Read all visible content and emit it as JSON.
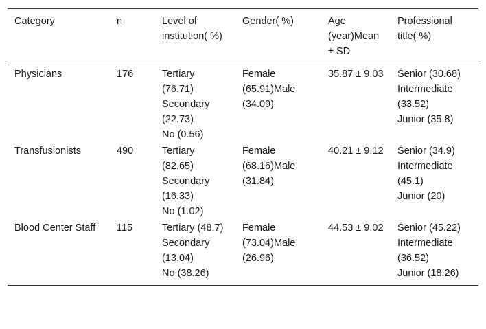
{
  "table": {
    "headers": [
      "Category",
      "n",
      "Level of institution( %)",
      "Gender( %)",
      "Age (year)Mean ± SD",
      "Professional title( %)"
    ],
    "rows": [
      {
        "category": "Physicians",
        "n": "176",
        "level": [
          "Tertiary (76.71)",
          "Secondary (22.73)",
          "No (0.56)"
        ],
        "gender": "Female (65.91)Male (34.09)",
        "age": "35.87 ± 9.03",
        "title": [
          "Senior (30.68)",
          "Intermediate (33.52)",
          "Junior (35.8)"
        ]
      },
      {
        "category": "Transfusionists",
        "n": "490",
        "level": [
          "Tertiary (82.65)",
          "Secondary (16.33)",
          "No (1.02)"
        ],
        "gender": "Female (68.16)Male (31.84)",
        "age": "40.21 ± 9.12",
        "title": [
          "Senior (34.9)",
          "Intermediate (45.1)",
          "Junior (20)"
        ]
      },
      {
        "category": "Blood Center Staff",
        "n": "115",
        "level": [
          "Tertiary (48.7)",
          "Secondary (13.04)",
          "No (38.26)"
        ],
        "gender": "Female (73.04)Male (26.96)",
        "age": "44.53 ± 9.02",
        "title": [
          "Senior (45.22)",
          "Intermediate (36.52)",
          "Junior (18.26)"
        ]
      }
    ]
  }
}
